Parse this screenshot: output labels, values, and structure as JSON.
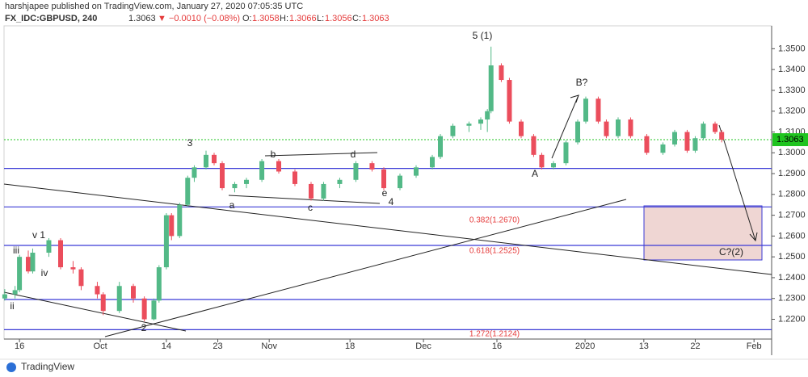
{
  "header": {
    "publisher": "harshjapee published on TradingView.com, January 27, 2020 07:05:35 UTC",
    "symbol": "FX_IDC:GBPUSD, 240",
    "last": "1.3063",
    "change": "▼ −0.0010 (−0.08%)",
    "o_label": "O:",
    "open": "1.3058",
    "h_label": "H:",
    "high": "1.3066",
    "l_label": "L:",
    "low": "1.3056",
    "c_label": "C:",
    "close": "1.3063"
  },
  "footer": {
    "brand": "TradingView"
  },
  "chart_data": {
    "type": "candlestick",
    "up_color": "#53b987",
    "down_color": "#eb4d5c",
    "xlim": [
      -2.1,
      102.4
    ],
    "ylim": [
      1.2105,
      1.361
    ],
    "xticks": [
      {
        "value": 0,
        "label": "16"
      },
      {
        "value": 11,
        "label": "Oct"
      },
      {
        "value": 20,
        "label": "14"
      },
      {
        "value": 27,
        "label": "23"
      },
      {
        "value": 34,
        "label": "Nov"
      },
      {
        "value": 45,
        "label": "18"
      },
      {
        "value": 55,
        "label": "Dec"
      },
      {
        "value": 65,
        "label": "16"
      },
      {
        "value": 77,
        "label": "2020"
      },
      {
        "value": 85,
        "label": "13"
      },
      {
        "value": 92,
        "label": "22"
      },
      {
        "value": 100,
        "label": "Feb"
      }
    ],
    "yticks": [
      {
        "value": 1.22,
        "label": "1.2200"
      },
      {
        "value": 1.23,
        "label": "1.2300"
      },
      {
        "value": 1.24,
        "label": "1.2400"
      },
      {
        "value": 1.25,
        "label": "1.2500"
      },
      {
        "value": 1.26,
        "label": "1.2600"
      },
      {
        "value": 1.27,
        "label": "1.2700"
      },
      {
        "value": 1.28,
        "label": "1.2800"
      },
      {
        "value": 1.29,
        "label": "1.2900"
      },
      {
        "value": 1.3,
        "label": "1.3000"
      },
      {
        "value": 1.31,
        "label": "1.3100"
      },
      {
        "value": 1.32,
        "label": "1.3200"
      },
      {
        "value": 1.33,
        "label": "1.3300"
      },
      {
        "value": 1.34,
        "label": "1.3400"
      },
      {
        "value": 1.35,
        "label": "1.3500"
      }
    ],
    "last_price": {
      "value": 1.3063,
      "label": "1.3063",
      "color": "#1fc41f"
    },
    "levels": {
      "color": "#3b3bd6",
      "values": [
        1.2925,
        1.274,
        1.2555,
        1.2295,
        1.215
      ]
    },
    "fib_labels": [
      "0.382(1.2670)",
      "0.618(1.2525)",
      "1.272(1.2124)"
    ],
    "wave_labels": [
      "5 (1)",
      "3",
      "v 1",
      "iii",
      "iv",
      "ii",
      "2",
      "a",
      "b",
      "c",
      "d",
      "e",
      "4",
      "A",
      "B?",
      "C?(2)"
    ],
    "x": [
      -2,
      -0.6,
      0,
      1.2,
      1.8,
      4,
      5.6,
      7.3,
      8.4,
      10.6,
      11.4,
      13.6,
      15.5,
      17,
      18.3,
      19,
      20,
      20.7,
      21.8,
      22.9,
      23.8,
      25.4,
      26.5,
      27.6,
      29.3,
      30.9,
      33,
      35.3,
      37.5,
      39.7,
      41.4,
      43.6,
      45.8,
      48,
      49.6,
      51.8,
      54,
      56.2,
      57.3,
      59,
      61.2,
      62.8,
      63.7,
      64.2,
      65.6,
      66.7,
      68.3,
      70,
      71.1,
      72.7,
      74.4,
      76,
      77.1,
      78.8,
      79.9,
      81.5,
      83.2,
      85.4,
      87.6,
      89.2,
      90.9,
      92,
      93.1,
      94.7,
      95.6
    ],
    "open": [
      1.23,
      1.232,
      1.234,
      1.25,
      1.243,
      1.252,
      1.258,
      1.245,
      1.244,
      1.236,
      1.232,
      1.224,
      1.236,
      1.23,
      1.22,
      1.229,
      1.245,
      1.27,
      1.26,
      1.275,
      1.288,
      1.293,
      1.299,
      1.295,
      1.283,
      1.285,
      1.287,
      1.296,
      1.291,
      1.285,
      1.278,
      1.285,
      1.287,
      1.295,
      1.292,
      1.283,
      1.289,
      1.293,
      1.298,
      1.308,
      1.313,
      1.314,
      1.316,
      1.32,
      1.342,
      1.335,
      1.315,
      1.308,
      1.299,
      1.293,
      1.295,
      1.305,
      1.315,
      1.326,
      1.315,
      1.308,
      1.316,
      1.308,
      1.3,
      1.304,
      1.31,
      1.301,
      1.307,
      1.314,
      1.31
    ],
    "high": [
      1.2345,
      1.236,
      1.251,
      1.253,
      1.254,
      1.259,
      1.259,
      1.248,
      1.245,
      1.238,
      1.233,
      1.238,
      1.237,
      1.231,
      1.23,
      1.246,
      1.271,
      1.271,
      1.276,
      1.289,
      1.294,
      1.301,
      1.3,
      1.296,
      1.286,
      1.288,
      1.297,
      1.297,
      1.292,
      1.286,
      1.286,
      1.288,
      1.296,
      1.296,
      1.293,
      1.29,
      1.294,
      1.299,
      1.309,
      1.314,
      1.315,
      1.317,
      1.321,
      1.351,
      1.343,
      1.336,
      1.316,
      1.309,
      1.3,
      1.296,
      1.306,
      1.316,
      1.327,
      1.327,
      1.316,
      1.317,
      1.317,
      1.309,
      1.305,
      1.311,
      1.311,
      1.308,
      1.315,
      1.315,
      1.311
    ],
    "low": [
      1.229,
      1.23,
      1.233,
      1.242,
      1.242,
      1.25,
      1.244,
      1.242,
      1.234,
      1.23,
      1.222,
      1.223,
      1.228,
      1.219,
      1.2195,
      1.228,
      1.244,
      1.258,
      1.259,
      1.274,
      1.286,
      1.292,
      1.294,
      1.282,
      1.281,
      1.283,
      1.286,
      1.29,
      1.284,
      1.277,
      1.277,
      1.283,
      1.286,
      1.291,
      1.282,
      1.282,
      1.288,
      1.292,
      1.297,
      1.307,
      1.31,
      1.311,
      1.31,
      1.319,
      1.334,
      1.314,
      1.307,
      1.298,
      1.292,
      1.292,
      1.294,
      1.304,
      1.314,
      1.314,
      1.307,
      1.307,
      1.307,
      1.299,
      1.299,
      1.303,
      1.3,
      1.3,
      1.306,
      1.309,
      1.305
    ],
    "close": [
      1.232,
      1.234,
      1.25,
      1.243,
      1.252,
      1.258,
      1.245,
      1.244,
      1.236,
      1.232,
      1.224,
      1.236,
      1.23,
      1.22,
      1.229,
      1.245,
      1.27,
      1.26,
      1.275,
      1.288,
      1.293,
      1.299,
      1.295,
      1.283,
      1.285,
      1.287,
      1.296,
      1.291,
      1.285,
      1.278,
      1.285,
      1.287,
      1.295,
      1.292,
      1.283,
      1.289,
      1.293,
      1.298,
      1.308,
      1.313,
      1.314,
      1.316,
      1.32,
      1.342,
      1.335,
      1.315,
      1.308,
      1.299,
      1.293,
      1.295,
      1.305,
      1.315,
      1.326,
      1.315,
      1.308,
      1.316,
      1.308,
      1.3,
      1.304,
      1.31,
      1.301,
      1.307,
      1.314,
      1.31,
      1.3063
    ]
  }
}
